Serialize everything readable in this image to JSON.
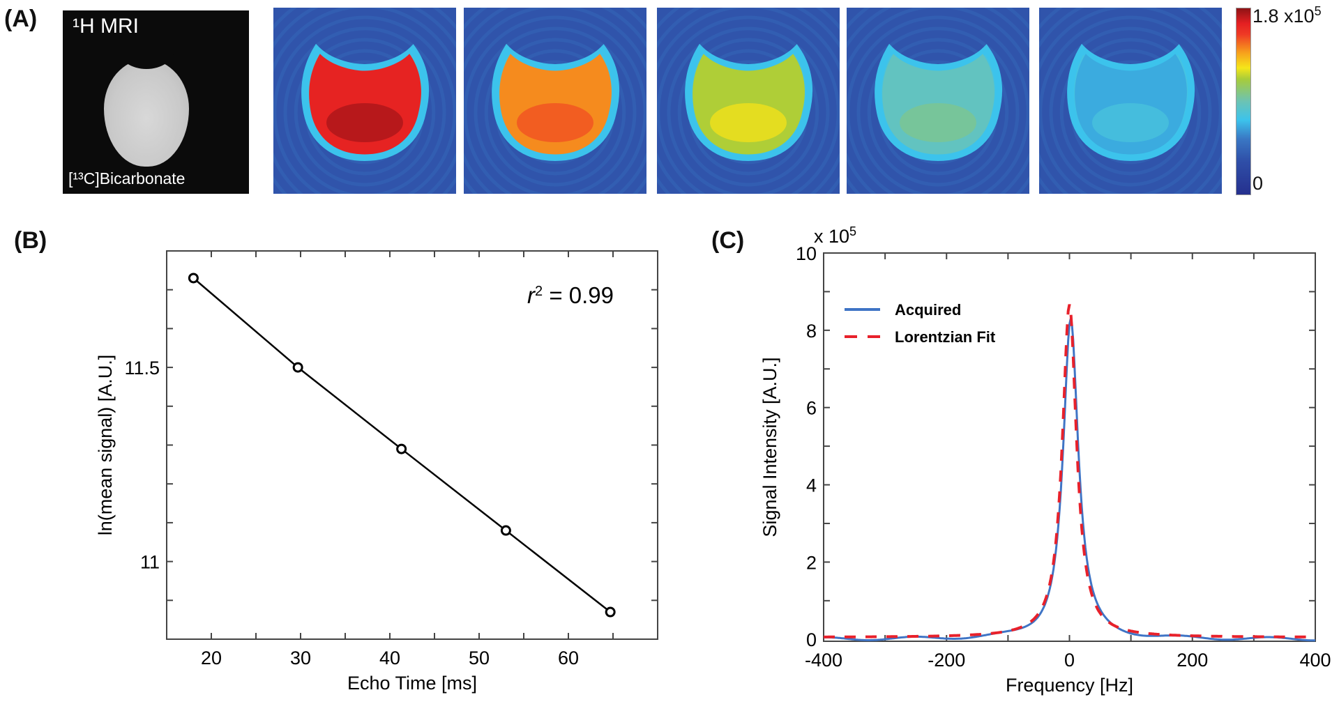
{
  "figure": {
    "panel_labels": [
      "(A)",
      "(B)",
      "(C)"
    ]
  },
  "panel_a": {
    "mri_title": "¹H MRI",
    "mri_caption": "[¹³C]Bicarbonate",
    "heatmap_count": 5,
    "heatmap_relative_intensity": [
      1.0,
      0.85,
      0.68,
      0.52,
      0.4
    ],
    "colormap": "jet",
    "colorbar": {
      "max_label": "1.8 x10",
      "max_exponent": "5",
      "min_label": "0",
      "range": [
        0,
        180000
      ]
    }
  },
  "chart_data": [
    {
      "id": "B",
      "type": "line",
      "title": "",
      "xlabel": "Echo Time [ms]",
      "ylabel": "ln(mean signal) [A.U.]",
      "xlim": [
        15,
        70
      ],
      "ylim": [
        10.8,
        11.8
      ],
      "xticks": [
        20,
        30,
        40,
        50,
        60
      ],
      "xminor_step": 5,
      "yticks": [
        11,
        11.5
      ],
      "yminor_step": 0.1,
      "grid": false,
      "series": [
        {
          "name": "ln(mean signal)",
          "marker": "circle",
          "color": "#000000",
          "x": [
            18.0,
            29.7,
            41.3,
            53.0,
            64.7
          ],
          "y": [
            11.73,
            11.5,
            11.29,
            11.08,
            10.87
          ]
        }
      ],
      "annotation": {
        "text_r": "r",
        "text_sup": "2",
        "text_rest": " = 0.99"
      }
    },
    {
      "id": "C",
      "type": "line",
      "title": "",
      "xlabel": "Frequency [Hz]",
      "ylabel": "Signal Intensity [A.U.]",
      "y_multiplier_label": "x 10",
      "y_multiplier_exponent": "5",
      "xlim": [
        -400,
        400
      ],
      "ylim": [
        -0.05,
        10
      ],
      "xticks": [
        -400,
        -200,
        0,
        200,
        400
      ],
      "xminor_step": 100,
      "yticks": [
        0,
        2,
        4,
        6,
        8,
        10
      ],
      "yminor_step": 1,
      "grid": false,
      "legend": {
        "position": "top-left",
        "entries": [
          "Acquired",
          "Lorentzian Fit"
        ]
      },
      "series": [
        {
          "name": "Acquired",
          "style": "solid",
          "color": "#3f74c5",
          "model": {
            "center": 2,
            "peak": 8.3,
            "fwhm_hz": 30,
            "baseline": 0.0
          }
        },
        {
          "name": "Lorentzian Fit",
          "style": "dashed",
          "color": "#e8212b",
          "model": {
            "center": 0,
            "peak": 8.67,
            "fwhm_hz": 28,
            "baseline": 0.05
          }
        }
      ]
    }
  ]
}
